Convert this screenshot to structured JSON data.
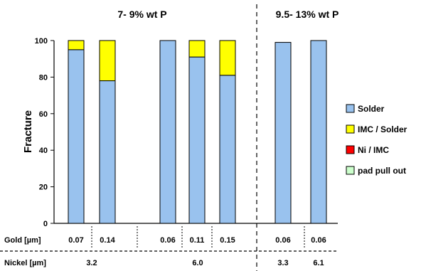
{
  "chart_data": {
    "type": "bar",
    "stacked": true,
    "ylabel": "Fracture",
    "ylim": [
      0,
      100
    ],
    "yticks": [
      0,
      20,
      40,
      60,
      80,
      100
    ],
    "phosphorus_groups": [
      {
        "label": "7- 9% wt P",
        "bar_indices": [
          0,
          1,
          2,
          3,
          4
        ]
      },
      {
        "label": "9.5- 13%  wt P",
        "bar_indices": [
          5,
          6
        ]
      }
    ],
    "row_labels": {
      "gold": "Gold [µm]",
      "nickel": "Nickel [µm]"
    },
    "gold": [
      "0.07",
      "0.14",
      "0.06",
      "0.11",
      "0.15",
      "0.06",
      "0.06"
    ],
    "nickel_groups": [
      {
        "label": "3.2",
        "bar_indices": [
          0,
          1
        ]
      },
      {
        "label": "6.0",
        "bar_indices": [
          2,
          3,
          4
        ]
      },
      {
        "label": "3.3",
        "bar_indices": [
          5
        ]
      },
      {
        "label": "6.1",
        "bar_indices": [
          6
        ]
      }
    ],
    "series": [
      {
        "name": "Solder",
        "color": "#99c2ee",
        "values": [
          95,
          78,
          100,
          91,
          81,
          99,
          100
        ]
      },
      {
        "name": "IMC / Solder",
        "color": "#ffff00",
        "values": [
          5,
          22,
          0,
          9,
          19,
          0,
          0
        ]
      },
      {
        "name": "Ni / IMC",
        "color": "#ff0000",
        "values": [
          0,
          0,
          0,
          0,
          0,
          0,
          0
        ]
      },
      {
        "name": "pad pull out",
        "color": "#ccffcc",
        "values": [
          0,
          0,
          0,
          0,
          0,
          0,
          0
        ]
      }
    ],
    "grid": false,
    "legend_position": "right"
  }
}
